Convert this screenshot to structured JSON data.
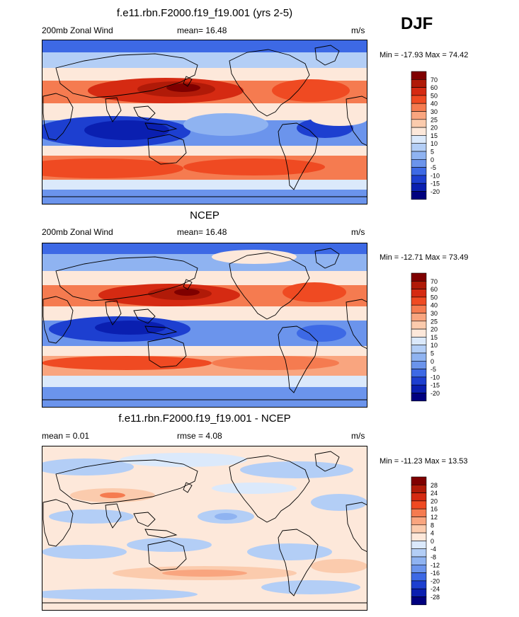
{
  "season": "DJF",
  "panels": [
    {
      "title": "f.e11.rbn.F2000.f19_f19.001 (yrs 2-5)",
      "left_label": "200mb Zonal Wind",
      "center_label": "mean=  16.48",
      "units": "m/s",
      "minmax": "Min = -17.93 Max =  74.42",
      "colorbar_labels": [
        "70",
        "60",
        "50",
        "40",
        "30",
        "25",
        "20",
        "15",
        "10",
        "5",
        "0",
        "-5",
        "-10",
        "-15",
        "-20"
      ]
    },
    {
      "title": "NCEP",
      "left_label": "200mb Zonal Wind",
      "center_label": "mean=  16.48",
      "units": "m/s",
      "minmax": "Min = -12.71 Max =  73.49",
      "colorbar_labels": [
        "70",
        "60",
        "50",
        "40",
        "30",
        "25",
        "20",
        "15",
        "10",
        "5",
        "0",
        "-5",
        "-10",
        "-15",
        "-20"
      ]
    },
    {
      "title": "f.e11.rbn.F2000.f19_f19.001 - NCEP",
      "left_label": "mean =   0.01",
      "center_label": "rmse =    4.08",
      "units": "m/s",
      "minmax": "Min = -11.23 Max =  13.53",
      "colorbar_labels": [
        "28",
        "24",
        "20",
        "16",
        "12",
        "8",
        "4",
        "0",
        "-4",
        "-8",
        "-12",
        "-16",
        "-20",
        "-24",
        "-28"
      ]
    }
  ],
  "colors": {
    "palette": [
      "#7f0000",
      "#b01a08",
      "#d52a12",
      "#ef4a22",
      "#f57b50",
      "#f9a57f",
      "#fbcbad",
      "#fde8da",
      "#dbe9fb",
      "#b3cef6",
      "#8fb3f1",
      "#6b94ec",
      "#3d69e5",
      "#1d3fd0",
      "#0a1fb0",
      "#00007f"
    ],
    "land_outline": "#000000"
  }
}
